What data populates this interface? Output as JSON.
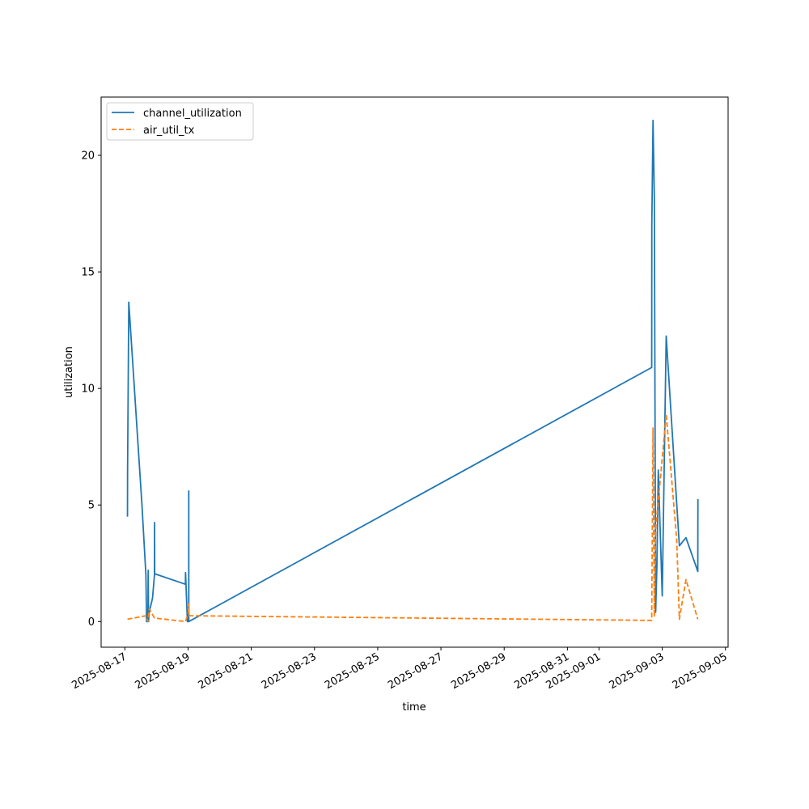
{
  "chart_data": {
    "type": "line",
    "xlabel": "time",
    "ylabel": "utilization",
    "legend_position": "upper-left",
    "x_axis": {
      "type": "date",
      "range": [
        "2025-08-16T06:00",
        "2025-09-05T02:00"
      ],
      "tick_labels": [
        "2025-08-17",
        "2025-08-19",
        "2025-08-21",
        "2025-08-23",
        "2025-08-25",
        "2025-08-27",
        "2025-08-29",
        "2025-08-31",
        "2025-09-01",
        "2025-09-03",
        "2025-09-05"
      ]
    },
    "y_axis": {
      "range": [
        -1.1,
        22.5
      ],
      "ticks": [
        0,
        5,
        10,
        15,
        20
      ]
    },
    "series": [
      {
        "name": "channel_utilization",
        "color": "#1f77b4",
        "dash": "solid",
        "points": [
          [
            "2025-08-17T02:00",
            4.5
          ],
          [
            "2025-08-17T02:05",
            6.5
          ],
          [
            "2025-08-17T03:00",
            13.7
          ],
          [
            "2025-08-17T13:00",
            5.0
          ],
          [
            "2025-08-17T16:00",
            2.0
          ],
          [
            "2025-08-17T16:30",
            0.0
          ],
          [
            "2025-08-17T17:30",
            0.0
          ],
          [
            "2025-08-17T17:45",
            2.2
          ],
          [
            "2025-08-17T18:00",
            0.0
          ],
          [
            "2025-08-17T18:30",
            0.4
          ],
          [
            "2025-08-17T21:00",
            1.0
          ],
          [
            "2025-08-17T22:30",
            2.0
          ],
          [
            "2025-08-17T22:35",
            4.25
          ],
          [
            "2025-08-17T22:40",
            2.05
          ],
          [
            "2025-08-18T22:00",
            1.6
          ],
          [
            "2025-08-18T22:05",
            2.1
          ],
          [
            "2025-08-18T23:30",
            0.0
          ],
          [
            "2025-08-19T00:30",
            0.0
          ],
          [
            "2025-08-19T00:32",
            5.6
          ],
          [
            "2025-08-19T00:34",
            0.0
          ],
          [
            "2025-09-02T16:00",
            10.9
          ],
          [
            "2025-09-02T16:05",
            17.0
          ],
          [
            "2025-09-02T17:00",
            21.5
          ],
          [
            "2025-09-02T18:00",
            18.2
          ],
          [
            "2025-09-02T19:00",
            0.4
          ],
          [
            "2025-09-02T20:00",
            2.5
          ],
          [
            "2025-09-02T21:00",
            6.5
          ],
          [
            "2025-09-03T00:00",
            1.1
          ],
          [
            "2025-09-03T03:00",
            12.25
          ],
          [
            "2025-09-03T13:00",
            3.25
          ],
          [
            "2025-09-03T18:00",
            3.6
          ],
          [
            "2025-09-04T03:00",
            2.15
          ],
          [
            "2025-09-04T03:05",
            5.25
          ]
        ]
      },
      {
        "name": "air_util_tx",
        "color": "#ff7f0e",
        "dash": "dashed",
        "points": [
          [
            "2025-08-17T02:00",
            0.1
          ],
          [
            "2025-08-17T16:00",
            0.25
          ],
          [
            "2025-08-17T17:30",
            0.0
          ],
          [
            "2025-08-17T18:30",
            0.55
          ],
          [
            "2025-08-17T22:30",
            0.15
          ],
          [
            "2025-08-18T22:00",
            0.0
          ],
          [
            "2025-08-19T00:30",
            0.4
          ],
          [
            "2025-08-19T00:32",
            0.75
          ],
          [
            "2025-08-19T00:34",
            0.25
          ],
          [
            "2025-09-02T16:00",
            0.05
          ],
          [
            "2025-09-02T17:00",
            8.3
          ],
          [
            "2025-09-02T18:00",
            0.2
          ],
          [
            "2025-09-02T19:00",
            4.0
          ],
          [
            "2025-09-03T00:00",
            7.0
          ],
          [
            "2025-09-03T03:00",
            8.9
          ],
          [
            "2025-09-03T11:00",
            3.5
          ],
          [
            "2025-09-03T13:00",
            0.1
          ],
          [
            "2025-09-03T18:00",
            1.8
          ],
          [
            "2025-09-04T03:00",
            0.1
          ]
        ]
      }
    ]
  }
}
